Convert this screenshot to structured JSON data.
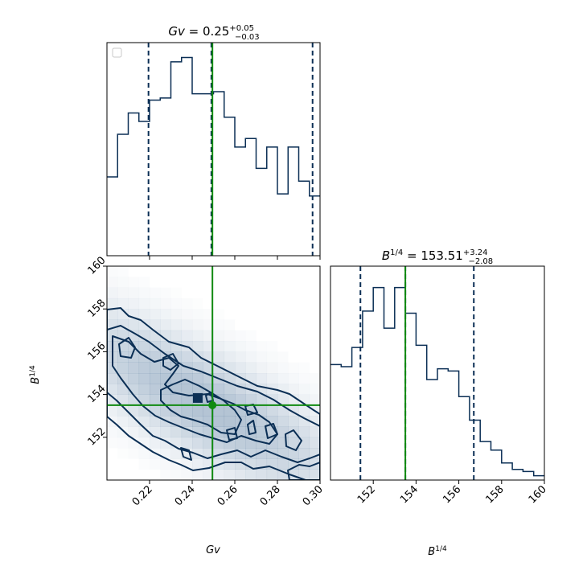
{
  "chart_data": [
    {
      "type": "histogram",
      "panel": "top-left",
      "title": {
        "prefix": "Gv",
        "value": " = 0.25",
        "sup": "+0.05",
        "sub": "−0.03"
      },
      "x": [
        0.2,
        0.205,
        0.21,
        0.215,
        0.22,
        0.225,
        0.23,
        0.235,
        0.24,
        0.245,
        0.25,
        0.255,
        0.26,
        0.265,
        0.27,
        0.275,
        0.28,
        0.285,
        0.29,
        0.295
      ],
      "values": [
        0.37,
        0.57,
        0.67,
        0.63,
        0.73,
        0.74,
        0.91,
        0.93,
        0.76,
        0.76,
        0.77,
        0.65,
        0.51,
        0.55,
        0.41,
        0.51,
        0.29,
        0.51,
        0.35,
        0.28
      ],
      "xlim": [
        0.2,
        0.3
      ],
      "ylim": [
        0,
        1.0
      ],
      "quantile_lines": [
        0.2195,
        0.249,
        0.2965
      ],
      "truth": 0.2495,
      "legend": "top-left (empty)"
    },
    {
      "type": "histogram",
      "panel": "bottom-right",
      "title": {
        "prefix": "B",
        "prefix_sup": "1/4",
        "value": " = 153.51",
        "sup": "+3.24",
        "sub": "−2.08"
      },
      "x": [
        150,
        150.5,
        151,
        151.5,
        152,
        152.5,
        153,
        153.5,
        154,
        154.5,
        155,
        155.5,
        156,
        156.5,
        157,
        157.5,
        158,
        158.5,
        159,
        159.5
      ],
      "values": [
        0.54,
        0.53,
        0.62,
        0.79,
        0.9,
        0.71,
        0.9,
        0.78,
        0.63,
        0.47,
        0.52,
        0.51,
        0.39,
        0.28,
        0.18,
        0.14,
        0.08,
        0.05,
        0.04,
        0.02
      ],
      "xlim": [
        150,
        160
      ],
      "ylim": [
        0,
        1.0
      ],
      "quantile_lines": [
        151.4,
        153.5,
        156.7
      ],
      "truth": 153.5,
      "xlabel": {
        "base": "B",
        "sup": "1/4"
      },
      "x_ticks": [
        "152",
        "154",
        "156",
        "158",
        "160"
      ]
    },
    {
      "type": "contour",
      "panel": "bottom-left",
      "xlim": [
        0.2,
        0.3
      ],
      "ylim": [
        150,
        160
      ],
      "x_ticks": [
        "0.22",
        "0.24",
        "0.26",
        "0.28",
        "0.30"
      ],
      "y_ticks": [
        "152",
        "154",
        "156",
        "158",
        "160"
      ],
      "xlabel": "Gv",
      "ylabel": {
        "base": "B",
        "sup": "1/4"
      },
      "truth": {
        "x": 0.2495,
        "y": 153.5
      },
      "peak": {
        "x": 0.243,
        "y": 153.8
      }
    }
  ],
  "colors": {
    "navy": "#0b2f55",
    "truth_green": "#118a11",
    "density_light": "#dbe3ec",
    "density_mid": "#aebfd1",
    "density_dark": "#7f97b2"
  }
}
